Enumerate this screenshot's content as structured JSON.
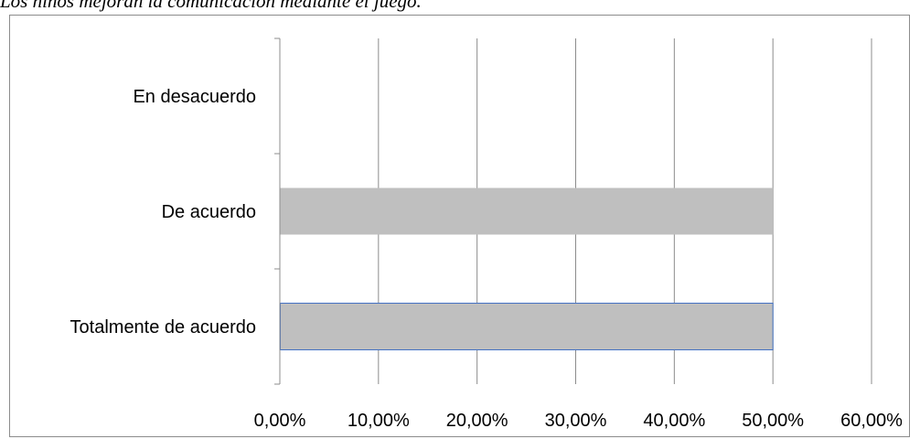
{
  "caption": "Los niños mejoran la comunicación mediante el juego.",
  "chart_data": {
    "type": "bar",
    "orientation": "horizontal",
    "title": "",
    "xlabel": "",
    "ylabel": "",
    "categories": [
      "Totalmente de acuerdo",
      "De acuerdo",
      "En desacuerdo"
    ],
    "values": [
      50,
      50,
      0
    ],
    "xlim": [
      0,
      60
    ],
    "x_ticks": [
      0,
      10,
      20,
      30,
      40,
      50,
      60
    ],
    "x_tick_labels": [
      "0,00%",
      "10,00%",
      "20,00%",
      "30,00%",
      "40,00%",
      "50,00%",
      "60,00%"
    ],
    "grid": "vertical",
    "legend": "none",
    "bar_color": "#bfbfbf",
    "highlight_border_color": "#4472c4"
  }
}
